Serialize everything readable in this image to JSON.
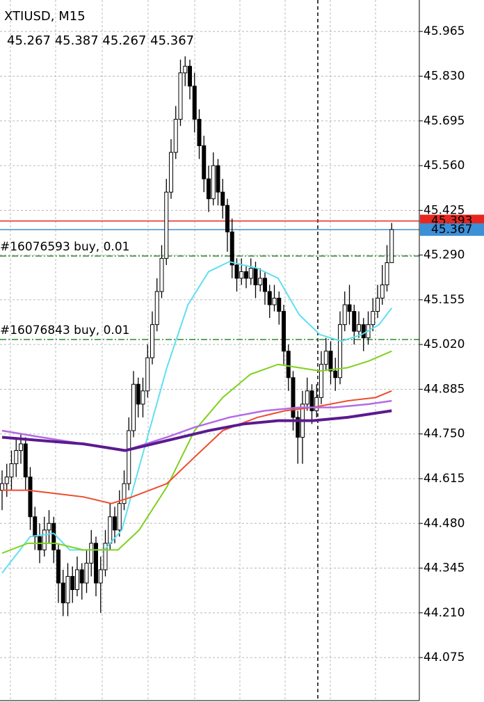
{
  "chart_data": {
    "type": "candlestick",
    "title": "XTIUSD, M15",
    "ohlc_text": "45.267 45.387 45.267 45.367",
    "ylim": [
      43.945,
      46.06
    ],
    "yticks": [
      45.965,
      {
        "value": 45.83,
        "label": "45.830"
      },
      45.695,
      {
        "value": 45.56,
        "label": "45.560"
      },
      45.425,
      {
        "value": 45.29,
        "label": "45.290"
      },
      45.155,
      {
        "value": 45.02,
        "label": "45.020"
      },
      44.885,
      {
        "value": 44.75,
        "label": "44.750"
      },
      44.615,
      {
        "value": 44.48,
        "label": "44.480"
      },
      44.345,
      {
        "value": 44.21,
        "label": "44.210"
      },
      44.075
    ],
    "grid": true,
    "candles": [
      [
        44.58,
        44.64,
        44.52,
        44.6
      ],
      [
        44.6,
        44.66,
        44.56,
        44.62
      ],
      [
        44.62,
        44.7,
        44.58,
        44.66
      ],
      [
        44.66,
        44.74,
        44.62,
        44.7
      ],
      [
        44.7,
        44.75,
        44.66,
        44.72
      ],
      [
        44.72,
        44.74,
        44.58,
        44.62
      ],
      [
        44.62,
        44.65,
        44.46,
        44.5
      ],
      [
        44.5,
        44.53,
        44.4,
        44.44
      ],
      [
        44.44,
        44.48,
        44.36,
        44.4
      ],
      [
        44.4,
        44.5,
        44.38,
        44.46
      ],
      [
        44.46,
        44.52,
        44.42,
        44.48
      ],
      [
        44.48,
        44.5,
        44.36,
        44.4
      ],
      [
        44.4,
        44.42,
        44.24,
        44.3
      ],
      [
        44.3,
        44.34,
        44.2,
        44.24
      ],
      [
        44.24,
        44.36,
        44.2,
        44.32
      ],
      [
        44.32,
        44.35,
        44.24,
        44.28
      ],
      [
        44.28,
        44.38,
        44.26,
        44.34
      ],
      [
        44.34,
        44.36,
        44.25,
        44.3
      ],
      [
        44.3,
        44.4,
        44.27,
        44.36
      ],
      [
        44.36,
        44.46,
        44.32,
        44.42
      ],
      [
        44.42,
        44.44,
        44.26,
        44.3
      ],
      [
        44.3,
        44.38,
        44.21,
        44.34
      ],
      [
        44.34,
        44.46,
        44.32,
        44.42
      ],
      [
        44.42,
        44.54,
        44.4,
        44.5
      ],
      [
        44.5,
        44.53,
        44.42,
        44.46
      ],
      [
        44.46,
        44.58,
        44.44,
        44.54
      ],
      [
        44.54,
        44.64,
        44.52,
        44.6
      ],
      [
        44.6,
        44.8,
        44.58,
        44.76
      ],
      [
        44.76,
        44.94,
        44.74,
        44.9
      ],
      [
        44.9,
        44.92,
        44.8,
        44.84
      ],
      [
        44.84,
        44.92,
        44.8,
        44.88
      ],
      [
        44.88,
        45.02,
        44.86,
        44.98
      ],
      [
        44.98,
        45.12,
        44.96,
        45.08
      ],
      [
        45.08,
        45.22,
        45.06,
        45.18
      ],
      [
        45.18,
        45.32,
        45.16,
        45.28
      ],
      [
        45.28,
        45.52,
        45.26,
        45.48
      ],
      [
        45.48,
        45.64,
        45.46,
        45.6
      ],
      [
        45.6,
        45.74,
        45.58,
        45.7
      ],
      [
        45.7,
        45.88,
        45.68,
        45.84
      ],
      [
        45.84,
        45.89,
        45.8,
        45.86
      ],
      [
        45.86,
        45.88,
        45.76,
        45.8
      ],
      [
        45.8,
        45.84,
        45.66,
        45.7
      ],
      [
        45.7,
        45.73,
        45.58,
        45.62
      ],
      [
        45.62,
        45.65,
        45.48,
        45.52
      ],
      [
        45.52,
        45.56,
        45.42,
        45.46
      ],
      [
        45.46,
        45.6,
        45.44,
        45.56
      ],
      [
        45.56,
        45.58,
        45.44,
        45.48
      ],
      [
        45.48,
        45.52,
        45.4,
        45.44
      ],
      [
        45.44,
        45.46,
        45.3,
        45.36
      ],
      [
        45.36,
        45.4,
        45.22,
        45.26
      ],
      [
        45.26,
        45.28,
        45.18,
        45.22
      ],
      [
        45.22,
        45.28,
        45.2,
        45.24
      ],
      [
        45.24,
        45.26,
        45.19,
        45.22
      ],
      [
        45.22,
        45.28,
        45.2,
        45.25
      ],
      [
        45.25,
        45.27,
        45.16,
        45.2
      ],
      [
        45.2,
        45.25,
        45.18,
        45.22
      ],
      [
        45.22,
        45.24,
        45.14,
        45.18
      ],
      [
        45.18,
        45.2,
        45.1,
        45.14
      ],
      [
        45.14,
        45.2,
        45.12,
        45.16
      ],
      [
        45.16,
        45.18,
        45.08,
        45.12
      ],
      [
        45.12,
        45.14,
        44.96,
        45.0
      ],
      [
        45.0,
        45.02,
        44.88,
        44.92
      ],
      [
        44.92,
        44.94,
        44.76,
        44.8
      ],
      [
        44.8,
        44.82,
        44.66,
        44.74
      ],
      [
        44.74,
        44.88,
        44.66,
        44.84
      ],
      [
        44.84,
        44.92,
        44.82,
        44.88
      ],
      [
        44.88,
        44.9,
        44.78,
        44.82
      ],
      [
        44.82,
        44.9,
        44.8,
        44.86
      ],
      [
        44.86,
        45.0,
        44.84,
        44.96
      ],
      [
        44.96,
        45.04,
        44.94,
        45.0
      ],
      [
        45.0,
        45.03,
        44.9,
        44.94
      ],
      [
        44.94,
        44.98,
        44.88,
        44.92
      ],
      [
        44.92,
        45.12,
        44.9,
        45.08
      ],
      [
        45.08,
        45.18,
        45.06,
        45.14
      ],
      [
        45.14,
        45.2,
        45.08,
        45.12
      ],
      [
        45.12,
        45.14,
        45.02,
        45.06
      ],
      [
        45.06,
        45.12,
        45.04,
        45.08
      ],
      [
        45.08,
        45.1,
        45.0,
        45.04
      ],
      [
        45.04,
        45.12,
        45.02,
        45.08
      ],
      [
        45.08,
        45.16,
        45.06,
        45.12
      ],
      [
        45.12,
        45.2,
        45.1,
        45.16
      ],
      [
        45.16,
        45.26,
        45.14,
        45.2
      ],
      [
        45.2,
        45.32,
        45.18,
        45.267
      ],
      [
        45.267,
        45.387,
        45.267,
        45.367
      ]
    ],
    "series": [
      {
        "color": "#5ee0f0",
        "width": 2,
        "x": [
          0,
          6,
          11,
          14.4,
          21.8,
          25.5,
          29.2,
          35.1,
          39.6,
          44,
          48.4,
          54.4,
          58.8,
          63.3,
          67.7,
          72.3,
          76.6,
          80.3,
          83
        ],
        "values": [
          44.33,
          44.44,
          44.45,
          44.4,
          44.4,
          44.46,
          44.65,
          44.95,
          45.14,
          45.24,
          45.27,
          45.25,
          45.22,
          45.11,
          45.05,
          45.03,
          45.05,
          45.08,
          45.13
        ]
      },
      {
        "color": "#7fd11b",
        "width": 2,
        "x": [
          0,
          5.5,
          11.4,
          17.3,
          24.7,
          29.2,
          35.1,
          41,
          47,
          52.9,
          58.8,
          63.3,
          67.7,
          73.6,
          78.1,
          83
        ],
        "values": [
          44.39,
          44.42,
          44.42,
          44.4,
          44.4,
          44.46,
          44.59,
          44.76,
          44.86,
          44.93,
          44.96,
          44.95,
          44.94,
          44.95,
          44.97,
          45.0
        ]
      },
      {
        "color": "#ee4b2b",
        "width": 2,
        "x": [
          0,
          5.5,
          11.4,
          17.3,
          23.3,
          27.7,
          35.1,
          41,
          47,
          54.4,
          60.3,
          66.2,
          73.6,
          79.6,
          83
        ],
        "values": [
          44.58,
          44.58,
          44.57,
          44.56,
          44.54,
          44.56,
          44.6,
          44.68,
          44.76,
          44.8,
          44.82,
          44.83,
          44.85,
          44.86,
          44.88
        ]
      },
      {
        "color": "#b26be6",
        "width": 2.5,
        "x": [
          0,
          8.4,
          17.3,
          26.2,
          35.1,
          41,
          48.4,
          55.9,
          63.3,
          70.7,
          78.1,
          83
        ],
        "values": [
          44.76,
          44.74,
          44.72,
          44.7,
          44.74,
          44.77,
          44.8,
          44.82,
          44.83,
          44.83,
          44.84,
          44.85
        ]
      },
      {
        "color": "#5b1a8e",
        "width": 4,
        "x": [
          0,
          8.4,
          17.3,
          26.2,
          35.1,
          44,
          51.4,
          58.8,
          66.2,
          73.6,
          83
        ],
        "values": [
          44.74,
          44.73,
          44.72,
          44.7,
          44.73,
          44.76,
          44.78,
          44.79,
          44.79,
          44.8,
          44.82
        ]
      }
    ],
    "bid": 45.393,
    "bid_color": "#e8261f",
    "ask": 45.367,
    "ask_color": "#3d8fd6",
    "orders": [
      {
        "label": "#16076593 buy, 0.01",
        "price": 45.287
      },
      {
        "label": "#16076843 buy, 0.01",
        "price": 45.035
      }
    ],
    "order_color": "#2a8a2a"
  }
}
